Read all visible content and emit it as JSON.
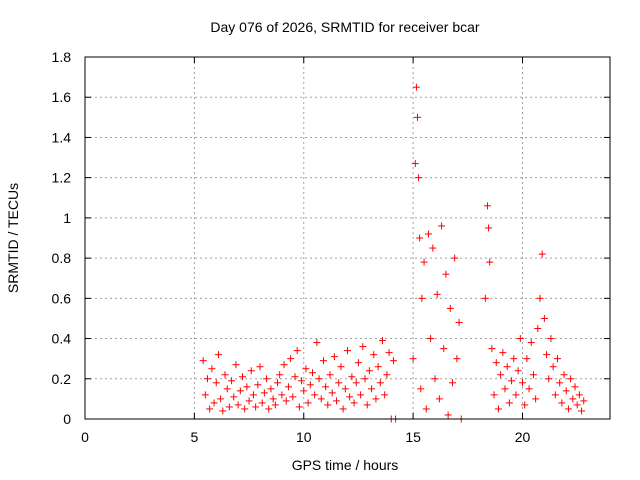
{
  "chart_data": {
    "type": "scatter",
    "title": "Day 076 of 2026, SRMTID for receiver bcar",
    "xlabel": "GPS time / hours",
    "ylabel": "SRMTID / TECUs",
    "xlim": [
      0,
      24
    ],
    "ylim": [
      0,
      1.8
    ],
    "x_ticks": [
      0,
      5,
      10,
      15,
      20
    ],
    "x_tick_labels": [
      "0",
      "5",
      "10",
      "15",
      "20"
    ],
    "y_ticks": [
      0,
      0.2,
      0.4,
      0.6,
      0.8,
      1.0,
      1.2,
      1.4,
      1.6,
      1.8
    ],
    "y_tick_labels": [
      "0",
      "0.2",
      "0.4",
      "0.6",
      "0.8",
      "1",
      "1.2",
      "1.4",
      "1.6",
      "1.8"
    ],
    "grid": true,
    "marker": "plus",
    "color": "#ff0000",
    "series": [
      {
        "name": "SRMTID",
        "points": [
          [
            5.4,
            0.29
          ],
          [
            5.5,
            0.12
          ],
          [
            5.6,
            0.2
          ],
          [
            5.7,
            0.05
          ],
          [
            5.8,
            0.25
          ],
          [
            5.9,
            0.08
          ],
          [
            6.0,
            0.18
          ],
          [
            6.1,
            0.32
          ],
          [
            6.2,
            0.1
          ],
          [
            6.3,
            0.04
          ],
          [
            6.4,
            0.22
          ],
          [
            6.5,
            0.15
          ],
          [
            6.6,
            0.06
          ],
          [
            6.7,
            0.19
          ],
          [
            6.8,
            0.11
          ],
          [
            6.9,
            0.27
          ],
          [
            7.0,
            0.07
          ],
          [
            7.1,
            0.14
          ],
          [
            7.2,
            0.21
          ],
          [
            7.3,
            0.05
          ],
          [
            7.4,
            0.16
          ],
          [
            7.5,
            0.09
          ],
          [
            7.6,
            0.24
          ],
          [
            7.7,
            0.12
          ],
          [
            7.8,
            0.06
          ],
          [
            7.9,
            0.17
          ],
          [
            8.0,
            0.26
          ],
          [
            8.1,
            0.08
          ],
          [
            8.2,
            0.13
          ],
          [
            8.3,
            0.2
          ],
          [
            8.4,
            0.05
          ],
          [
            8.5,
            0.15
          ],
          [
            8.6,
            0.1
          ],
          [
            8.7,
            0.07
          ],
          [
            8.8,
            0.18
          ],
          [
            8.9,
            0.22
          ],
          [
            9.0,
            0.12
          ],
          [
            9.1,
            0.27
          ],
          [
            9.2,
            0.09
          ],
          [
            9.3,
            0.16
          ],
          [
            9.4,
            0.3
          ],
          [
            9.5,
            0.11
          ],
          [
            9.6,
            0.21
          ],
          [
            9.7,
            0.34
          ],
          [
            9.8,
            0.06
          ],
          [
            9.9,
            0.19
          ],
          [
            10.0,
            0.14
          ],
          [
            10.1,
            0.25
          ],
          [
            10.2,
            0.08
          ],
          [
            10.3,
            0.17
          ],
          [
            10.4,
            0.23
          ],
          [
            10.5,
            0.12
          ],
          [
            10.6,
            0.38
          ],
          [
            10.7,
            0.2
          ],
          [
            10.8,
            0.1
          ],
          [
            10.9,
            0.29
          ],
          [
            11.0,
            0.16
          ],
          [
            11.1,
            0.07
          ],
          [
            11.2,
            0.22
          ],
          [
            11.3,
            0.13
          ],
          [
            11.4,
            0.31
          ],
          [
            11.5,
            0.09
          ],
          [
            11.6,
            0.18
          ],
          [
            11.7,
            0.26
          ],
          [
            11.8,
            0.05
          ],
          [
            11.9,
            0.15
          ],
          [
            12.0,
            0.34
          ],
          [
            12.1,
            0.11
          ],
          [
            12.2,
            0.21
          ],
          [
            12.3,
            0.08
          ],
          [
            12.4,
            0.18
          ],
          [
            12.5,
            0.28
          ],
          [
            12.6,
            0.12
          ],
          [
            12.7,
            0.36
          ],
          [
            12.8,
            0.2
          ],
          [
            12.9,
            0.07
          ],
          [
            13.0,
            0.24
          ],
          [
            13.1,
            0.15
          ],
          [
            13.2,
            0.32
          ],
          [
            13.3,
            0.1
          ],
          [
            13.4,
            0.26
          ],
          [
            13.5,
            0.18
          ],
          [
            13.6,
            0.39
          ],
          [
            13.7,
            0.12
          ],
          [
            13.8,
            0.22
          ],
          [
            13.9,
            0.33
          ],
          [
            14.0,
            0.0
          ],
          [
            14.1,
            0.29
          ],
          [
            14.2,
            0.0
          ],
          [
            15.0,
            0.3
          ],
          [
            15.1,
            1.27
          ],
          [
            15.15,
            1.65
          ],
          [
            15.2,
            1.5
          ],
          [
            15.25,
            1.2
          ],
          [
            15.3,
            0.9
          ],
          [
            15.35,
            0.15
          ],
          [
            15.4,
            0.6
          ],
          [
            15.5,
            0.78
          ],
          [
            15.6,
            0.05
          ],
          [
            15.7,
            0.92
          ],
          [
            15.8,
            0.4
          ],
          [
            15.9,
            0.85
          ],
          [
            16.0,
            0.2
          ],
          [
            16.1,
            0.62
          ],
          [
            16.2,
            0.1
          ],
          [
            16.3,
            0.96
          ],
          [
            16.4,
            0.35
          ],
          [
            16.5,
            0.72
          ],
          [
            16.6,
            0.02
          ],
          [
            16.7,
            0.55
          ],
          [
            16.8,
            0.18
          ],
          [
            16.9,
            0.8
          ],
          [
            17.0,
            0.3
          ],
          [
            17.1,
            0.48
          ],
          [
            17.2,
            0.0
          ],
          [
            18.3,
            0.6
          ],
          [
            18.4,
            1.06
          ],
          [
            18.45,
            0.95
          ],
          [
            18.5,
            0.78
          ],
          [
            18.6,
            0.35
          ],
          [
            18.7,
            0.12
          ],
          [
            18.8,
            0.28
          ],
          [
            18.9,
            0.05
          ],
          [
            19.0,
            0.22
          ],
          [
            19.1,
            0.33
          ],
          [
            19.2,
            0.15
          ],
          [
            19.3,
            0.26
          ],
          [
            19.4,
            0.08
          ],
          [
            19.5,
            0.19
          ],
          [
            19.6,
            0.3
          ],
          [
            19.7,
            0.12
          ],
          [
            19.8,
            0.24
          ],
          [
            19.9,
            0.4
          ],
          [
            20.0,
            0.18
          ],
          [
            20.1,
            0.07
          ],
          [
            20.2,
            0.3
          ],
          [
            20.3,
            0.15
          ],
          [
            20.4,
            0.38
          ],
          [
            20.5,
            0.22
          ],
          [
            20.6,
            0.1
          ],
          [
            20.7,
            0.45
          ],
          [
            20.8,
            0.6
          ],
          [
            20.9,
            0.82
          ],
          [
            21.0,
            0.5
          ],
          [
            21.1,
            0.32
          ],
          [
            21.2,
            0.2
          ],
          [
            21.3,
            0.4
          ],
          [
            21.4,
            0.26
          ],
          [
            21.5,
            0.12
          ],
          [
            21.6,
            0.3
          ],
          [
            21.7,
            0.18
          ],
          [
            21.8,
            0.08
          ],
          [
            21.9,
            0.22
          ],
          [
            22.0,
            0.14
          ],
          [
            22.1,
            0.05
          ],
          [
            22.2,
            0.2
          ],
          [
            22.3,
            0.1
          ],
          [
            22.4,
            0.16
          ],
          [
            22.5,
            0.07
          ],
          [
            22.6,
            0.12
          ],
          [
            22.7,
            0.04
          ],
          [
            22.8,
            0.09
          ]
        ]
      }
    ]
  }
}
